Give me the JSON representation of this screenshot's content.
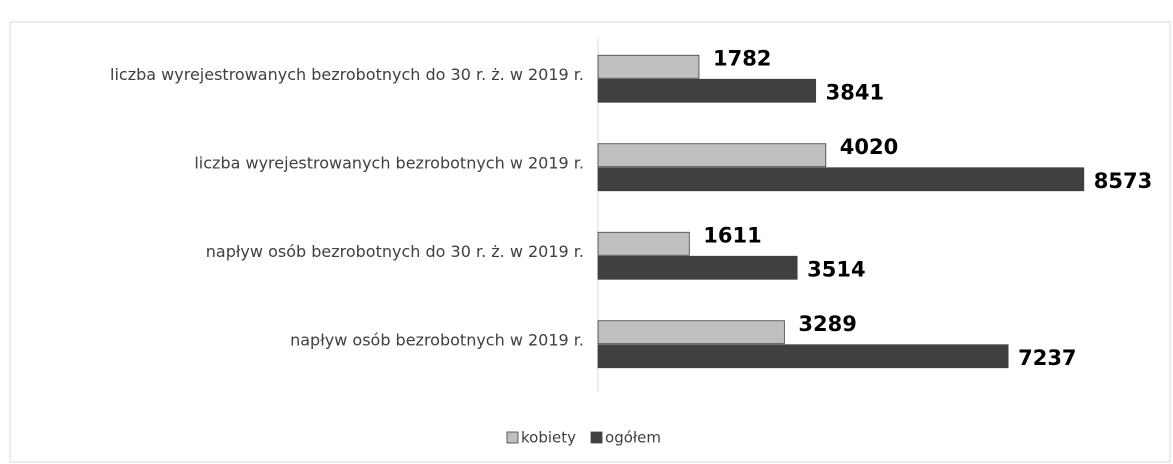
{
  "chart_data": {
    "type": "barh",
    "categories": [
      "liczba wyrejestrowanych bezrobotnych do 30 r. ż. w 2019 r.",
      "liczba wyrejestrowanych bezrobotnych w 2019 r.",
      "napływ osób bezrobotnych do 30 r. ż. w 2019 r.",
      "napływ osób bezrobotnych w 2019 r."
    ],
    "series": [
      {
        "name": "kobiety",
        "color": "#bfbfbf",
        "values": [
          1782,
          4020,
          1611,
          3289
        ]
      },
      {
        "name": "ogółem",
        "color": "#404040",
        "values": [
          3841,
          8573,
          3514,
          7237
        ]
      }
    ],
    "xlim": [
      0,
      9000
    ],
    "legend": "bottom"
  }
}
